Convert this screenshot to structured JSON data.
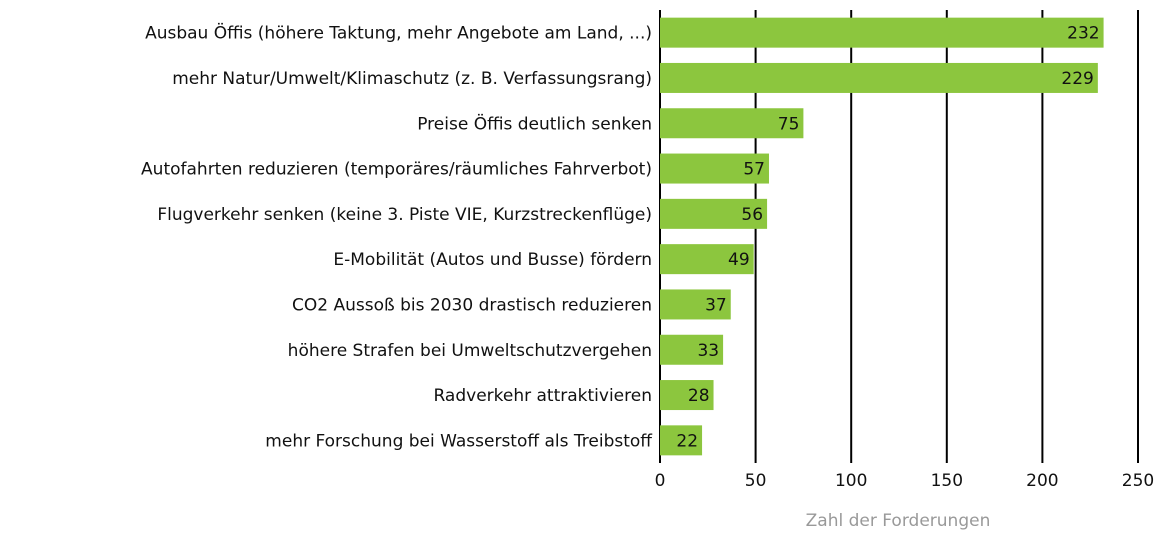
{
  "chart_data": {
    "type": "hbar",
    "categories": [
      "Ausbau Öffis (höhere Taktung, mehr Angebote am Land, ...)",
      "mehr Natur/Umwelt/Klimaschutz (z. B. Verfassungsrang)",
      "Preise Öffis deutlich senken",
      "Autofahrten reduzieren (temporäres/räumliches Fahrverbot)",
      "Flugverkehr senken (keine 3. Piste VIE, Kurzstreckenflüge)",
      "E-Mobilität (Autos und Busse) fördern",
      "CO2 Aussoß bis 2030 drastisch reduzieren",
      "höhere Strafen bei Umweltschutzvergehen",
      "Radverkehr attraktivieren",
      "mehr Forschung bei Wasserstoff als Treibstoff"
    ],
    "values": [
      232,
      229,
      75,
      57,
      56,
      49,
      37,
      33,
      28,
      22
    ],
    "color": "#8cc63e",
    "xlabel": "Zahl der Forderungen",
    "xlim": [
      0,
      250
    ],
    "xticks": [
      0,
      50,
      100,
      150,
      200,
      250
    ],
    "grid": true
  }
}
